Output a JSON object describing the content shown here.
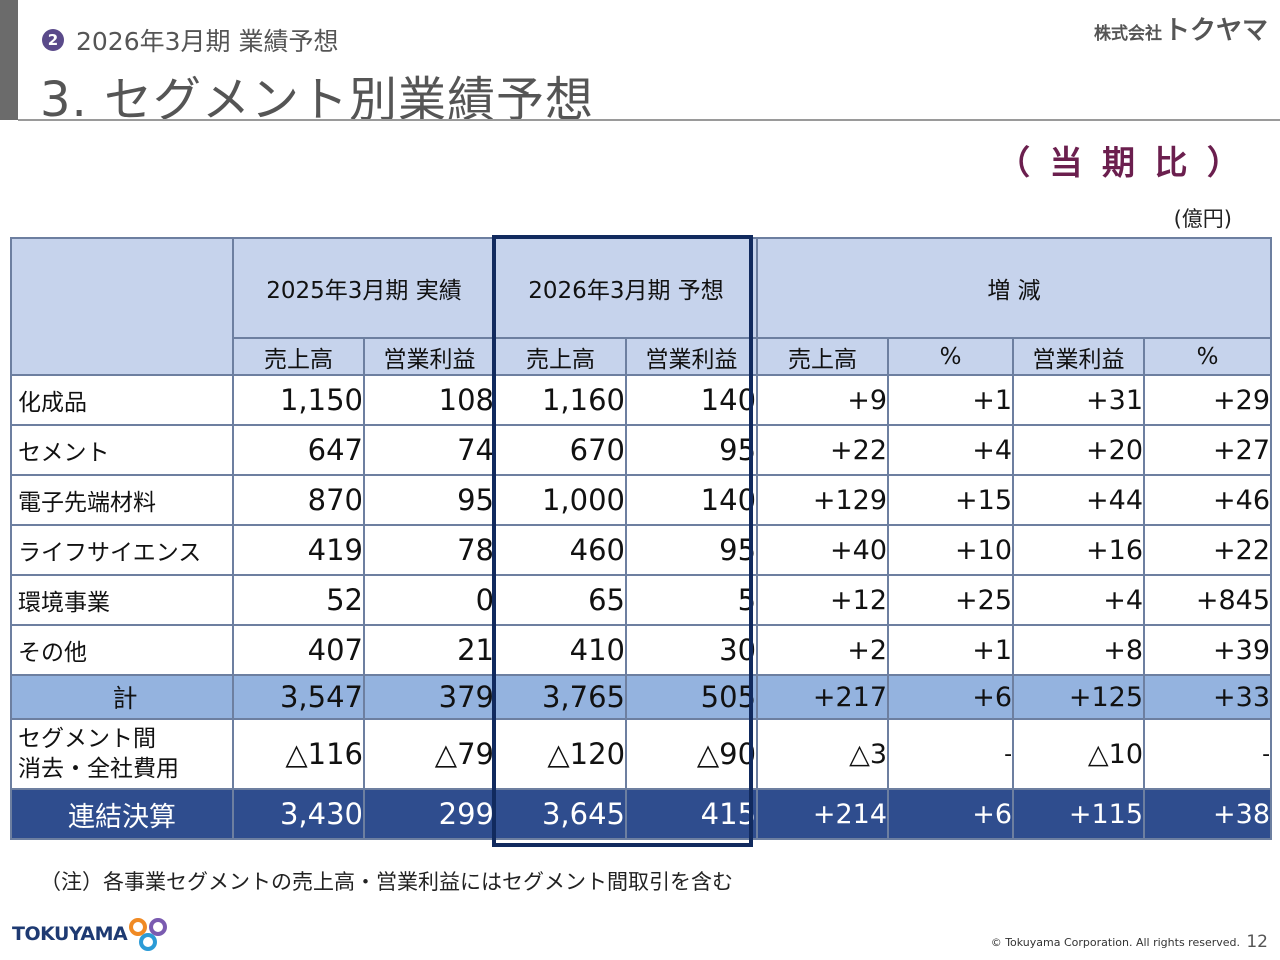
{
  "header": {
    "badge": "2",
    "subtitle": "2026年3月期 業績予想",
    "title": "3. セグメント別業績予想",
    "brand_prefix": "株式会社",
    "brand_name": "トクヤマ",
    "compare_label": "（ 当 期 比 ）",
    "unit": "(億円)"
  },
  "table": {
    "group_headers": [
      "2025年3月期 実績",
      "2026年3月期 予想",
      "増 減"
    ],
    "sub_headers": [
      "売上高",
      "営業利益",
      "売上高",
      "営業利益",
      "売上高",
      "%",
      "営業利益",
      "%"
    ],
    "rows": [
      {
        "label": "化成品",
        "cells": [
          "1,150",
          "108",
          "1,160",
          "140",
          "+9",
          "+1",
          "+31",
          "+29"
        ]
      },
      {
        "label": "セメント",
        "cells": [
          "647",
          "74",
          "670",
          "95",
          "+22",
          "+4",
          "+20",
          "+27"
        ]
      },
      {
        "label": "電子先端材料",
        "cells": [
          "870",
          "95",
          "1,000",
          "140",
          "+129",
          "+15",
          "+44",
          "+46"
        ]
      },
      {
        "label": "ライフサイエンス",
        "cells": [
          "419",
          "78",
          "460",
          "95",
          "+40",
          "+10",
          "+16",
          "+22"
        ]
      },
      {
        "label": "環境事業",
        "cells": [
          "52",
          "0",
          "65",
          "5",
          "+12",
          "+25",
          "+4",
          "+845"
        ]
      },
      {
        "label": "その他",
        "cells": [
          "407",
          "21",
          "410",
          "30",
          "+2",
          "+1",
          "+8",
          "+39"
        ]
      }
    ],
    "subtotal": {
      "label": "計",
      "cells": [
        "3,547",
        "379",
        "3,765",
        "505",
        "+217",
        "+6",
        "+125",
        "+33"
      ]
    },
    "elimination": {
      "label_line1": "セグメント間",
      "label_line2": "消去・全社費用",
      "cells": [
        "△116",
        "△79",
        "△120",
        "△90",
        "△3",
        "-",
        "△10",
        "-"
      ]
    },
    "total": {
      "label": "連結決算",
      "cells": [
        "3,430",
        "299",
        "3,645",
        "415",
        "+214",
        "+6",
        "+115",
        "+38"
      ]
    }
  },
  "footer": {
    "note": "（注）各事業セグメントの売上高・営業利益にはセグメント間取引を含む",
    "logo_text": "TOKUYAMA",
    "copyright": "© Tokuyama Corporation. All rights reserved.",
    "page_number": "12"
  },
  "colors": {
    "header_fill": "#c6d3ec",
    "subtotal_fill": "#94b3df",
    "total_fill": "#2f4d8e",
    "highlight_border": "#112a5e",
    "compare_label": "#6b1f4e",
    "badge": "#5a4a8a"
  }
}
